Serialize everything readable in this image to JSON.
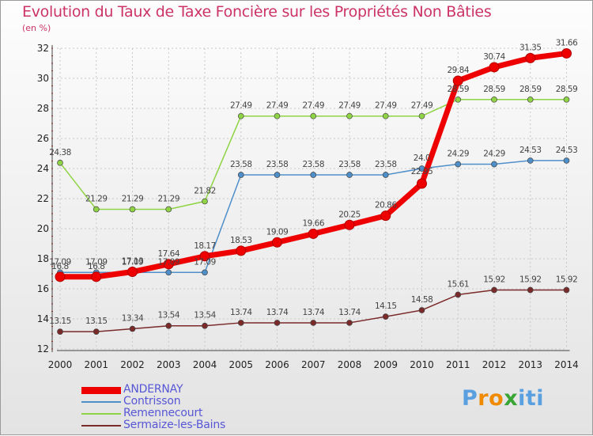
{
  "title": "Evolution du Taux de Taxe Foncière sur les Propriétés Non Bâties",
  "unit_label": "(en %)",
  "logo": {
    "letters": [
      "P",
      "r",
      "o",
      "x",
      "i",
      "t",
      "i"
    ],
    "colors": [
      "#5aa0e0",
      "#f08a00",
      "#f08a00",
      "#39a534",
      "#5aa0e0",
      "#5aa0e0",
      "#5aa0e0"
    ]
  },
  "chart_data": {
    "type": "line",
    "title": "Evolution du Taux de Taxe Foncière sur les Propriétés Non Bâties",
    "ylabel": "(en %)",
    "xlabel": "",
    "x": [
      "2000",
      "2001",
      "2002",
      "2003",
      "2004",
      "2005",
      "2006",
      "2007",
      "2008",
      "2009",
      "2010",
      "2011",
      "2012",
      "2013",
      "2014"
    ],
    "ylim": [
      12,
      32
    ],
    "yticks": [
      "12",
      "14",
      "16",
      "18",
      "20",
      "22",
      "24",
      "26",
      "28",
      "30",
      "32"
    ],
    "grid": true,
    "legend_position": "bottom-left",
    "series": [
      {
        "name": "ANDERNAY",
        "color": "#ee0000",
        "values": [
          16.8,
          16.8,
          17.13,
          17.64,
          18.17,
          18.53,
          19.09,
          19.66,
          20.25,
          20.86,
          23.0,
          29.84,
          30.74,
          31.35,
          31.66
        ],
        "labels": [
          "16.8",
          "16.8",
          "17.13",
          "17.64",
          "18.17",
          "18.53",
          "19.09",
          "19.66",
          "20.25",
          "20.86",
          "",
          "29.84",
          "30.74",
          "31.35",
          "31.66"
        ]
      },
      {
        "name": "Contrisson",
        "color": "#4f8fc9",
        "values": [
          17.09,
          17.09,
          17.09,
          17.09,
          17.09,
          23.58,
          23.58,
          23.58,
          23.58,
          23.58,
          24.0,
          24.29,
          24.29,
          24.53,
          24.53
        ],
        "labels": [
          "17.09",
          "17.09",
          "17.09",
          "17.09",
          "17.09",
          "23.58",
          "23.58",
          "23.58",
          "23.58",
          "23.58",
          "24.0",
          "24.29",
          "24.29",
          "24.53",
          "24.53"
        ]
      },
      {
        "name": "Remennecourt",
        "color": "#8fd444",
        "values": [
          24.38,
          21.29,
          21.29,
          21.29,
          21.82,
          27.49,
          27.49,
          27.49,
          27.49,
          27.49,
          27.49,
          28.59,
          28.59,
          28.59,
          28.59
        ],
        "labels": [
          "24.38",
          "21.29",
          "21.29",
          "21.29",
          "21.82",
          "27.49",
          "27.49",
          "27.49",
          "27.49",
          "27.49",
          "27.49",
          "28.59",
          "28.59",
          "28.59",
          "28.59"
        ]
      },
      {
        "name": "Sermaize-les-Bains",
        "color": "#7b2a2a",
        "values": [
          13.15,
          13.15,
          13.34,
          13.54,
          13.54,
          13.74,
          13.74,
          13.74,
          13.74,
          14.15,
          14.58,
          15.61,
          15.92,
          15.92,
          15.92
        ],
        "labels": [
          "13.15",
          "13.15",
          "13.34",
          "13.54",
          "13.54",
          "13.74",
          "13.74",
          "13.74",
          "13.74",
          "14.15",
          "14.58",
          "15.61",
          "15.92",
          "15.92",
          "15.92"
        ]
      }
    ],
    "extra_annotations": [
      {
        "series": "ANDERNAY",
        "year": "2010",
        "text": "22.95"
      }
    ]
  }
}
